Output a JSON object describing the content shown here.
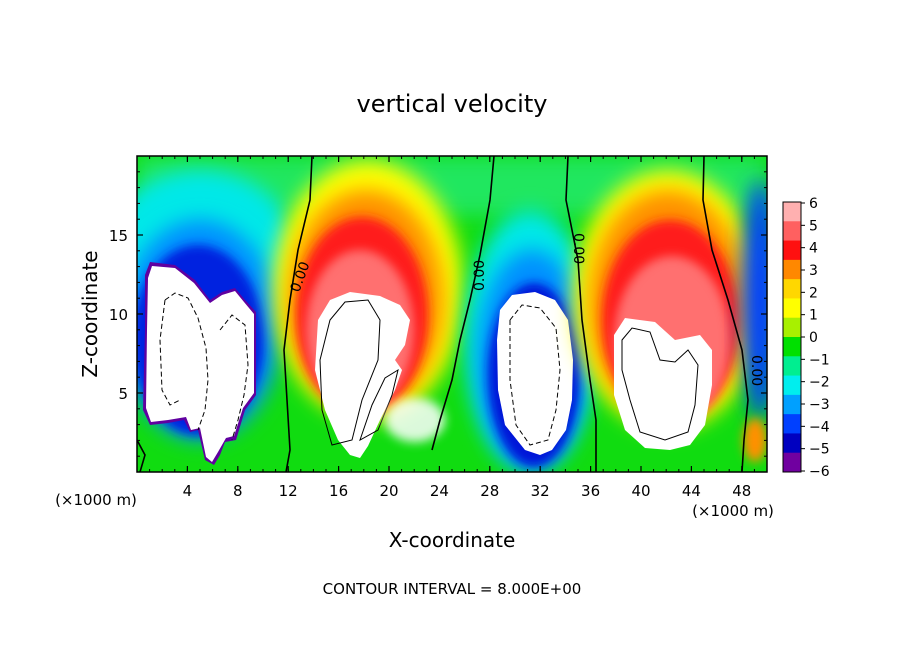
{
  "chart_data": {
    "type": "heatmap",
    "title": "vertical velocity",
    "xlabel": "X-coordinate",
    "ylabel": "Z-coordinate",
    "x_unit_left": "(×1000 m)",
    "x_unit_right": "(×1000 m)",
    "xlim": [
      0,
      50
    ],
    "ylim": [
      0,
      20
    ],
    "x_ticks": [
      4,
      8,
      12,
      16,
      20,
      24,
      28,
      32,
      36,
      40,
      44,
      48
    ],
    "y_ticks": [
      5,
      10,
      15
    ],
    "colorbar": {
      "ticks": [
        6,
        5,
        4,
        3,
        2,
        1,
        0,
        -1,
        -2,
        -3,
        -4,
        -5,
        -6
      ],
      "range": [
        -6,
        6
      ],
      "stops": [
        "#ffb0b0",
        "#ff6060",
        "#ff1010",
        "#ff8800",
        "#ffd700",
        "#ffff00",
        "#a8f000",
        "#00e000",
        "#00ee90",
        "#00eeee",
        "#00a0ff",
        "#0040ff",
        "#0000c0",
        "#7000a0"
      ]
    },
    "contour_labels": [
      "0.00",
      "0.00",
      "0.00",
      "0.00"
    ],
    "footer": "CONTOUR INTERVAL = 8.000E+00",
    "cells": [
      {
        "x": 4,
        "z": 9,
        "w": "min"
      },
      {
        "x": 7,
        "z": 8,
        "w": "min"
      },
      {
        "x": 18,
        "z": 7,
        "w": "max"
      },
      {
        "x": 31,
        "z": 7,
        "w": "min"
      },
      {
        "x": 41,
        "z": 7,
        "w": "max"
      }
    ]
  }
}
